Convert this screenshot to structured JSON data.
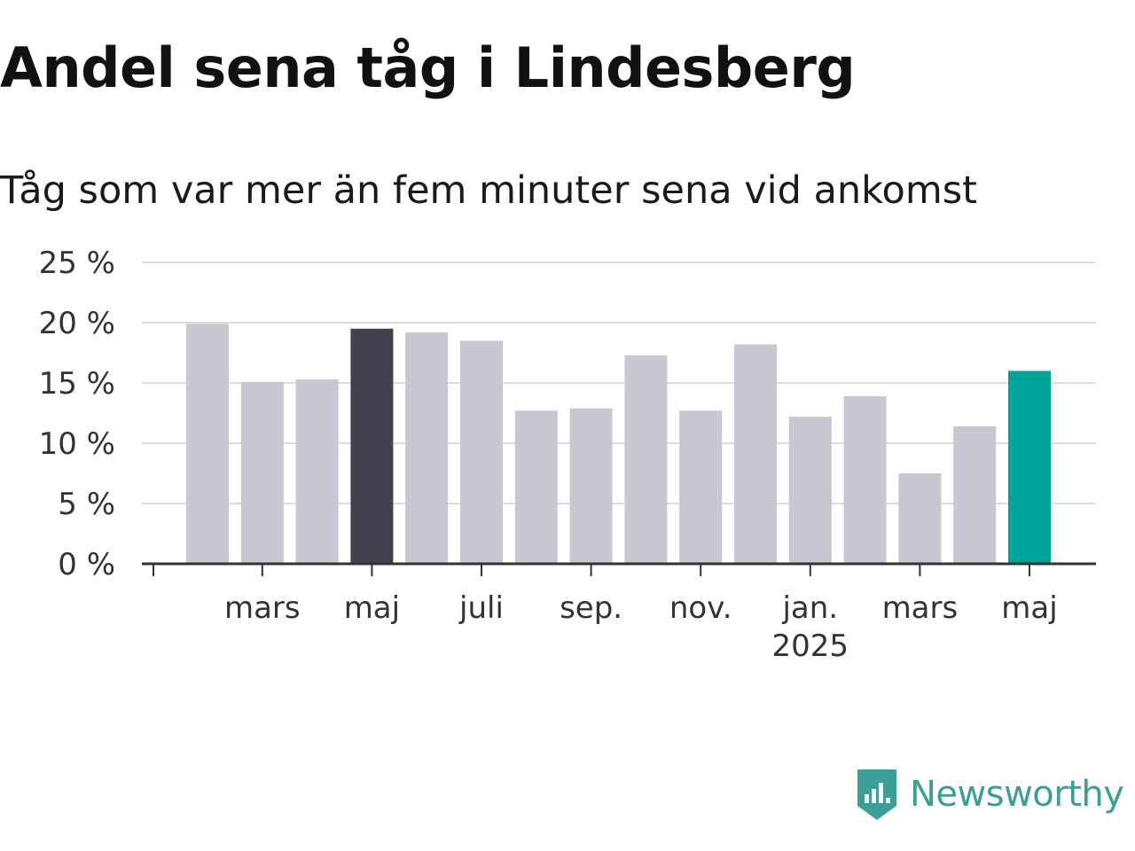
{
  "colors": {
    "default_bar": "#c8c7d2",
    "highlight_past": "#43414e",
    "highlight_latest": "#00a49a",
    "grid": "#dddddd",
    "axis": "#333333",
    "brand": "#3a9f95"
  },
  "brand": {
    "name": "Newsworthy",
    "icon": "newsworthy-logo-icon"
  },
  "chart_data": {
    "type": "bar",
    "title": "Andel sena tåg i Lindesberg",
    "subtitle": "Tåg som var mer än fem minuter sena vid ankomst",
    "xlabel": "",
    "ylabel": "",
    "ylim": [
      0,
      25
    ],
    "yticks": [
      {
        "value": 0,
        "label": "0 %"
      },
      {
        "value": 5,
        "label": "5 %"
      },
      {
        "value": 10,
        "label": "10 %"
      },
      {
        "value": 15,
        "label": "15 %"
      },
      {
        "value": 20,
        "label": "20 %"
      },
      {
        "value": 25,
        "label": "25 %"
      }
    ],
    "grid": true,
    "values": [
      19.9,
      15.1,
      15.3,
      19.5,
      19.2,
      18.5,
      12.7,
      12.9,
      17.3,
      12.7,
      18.2,
      12.2,
      13.9,
      7.5,
      11.4,
      16.0
    ],
    "highlight": {
      "3": "highlight_past",
      "15": "highlight_latest"
    },
    "x_tick_labels": [
      {
        "index": 1,
        "label": "mars"
      },
      {
        "index": 3,
        "label": "maj"
      },
      {
        "index": 5,
        "label": "juli"
      },
      {
        "index": 7,
        "label": "sep."
      },
      {
        "index": 9,
        "label": "nov."
      },
      {
        "index": 11,
        "label": "jan.",
        "sublabel": "2025"
      },
      {
        "index": 13,
        "label": "mars"
      },
      {
        "index": 15,
        "label": "maj"
      }
    ]
  }
}
